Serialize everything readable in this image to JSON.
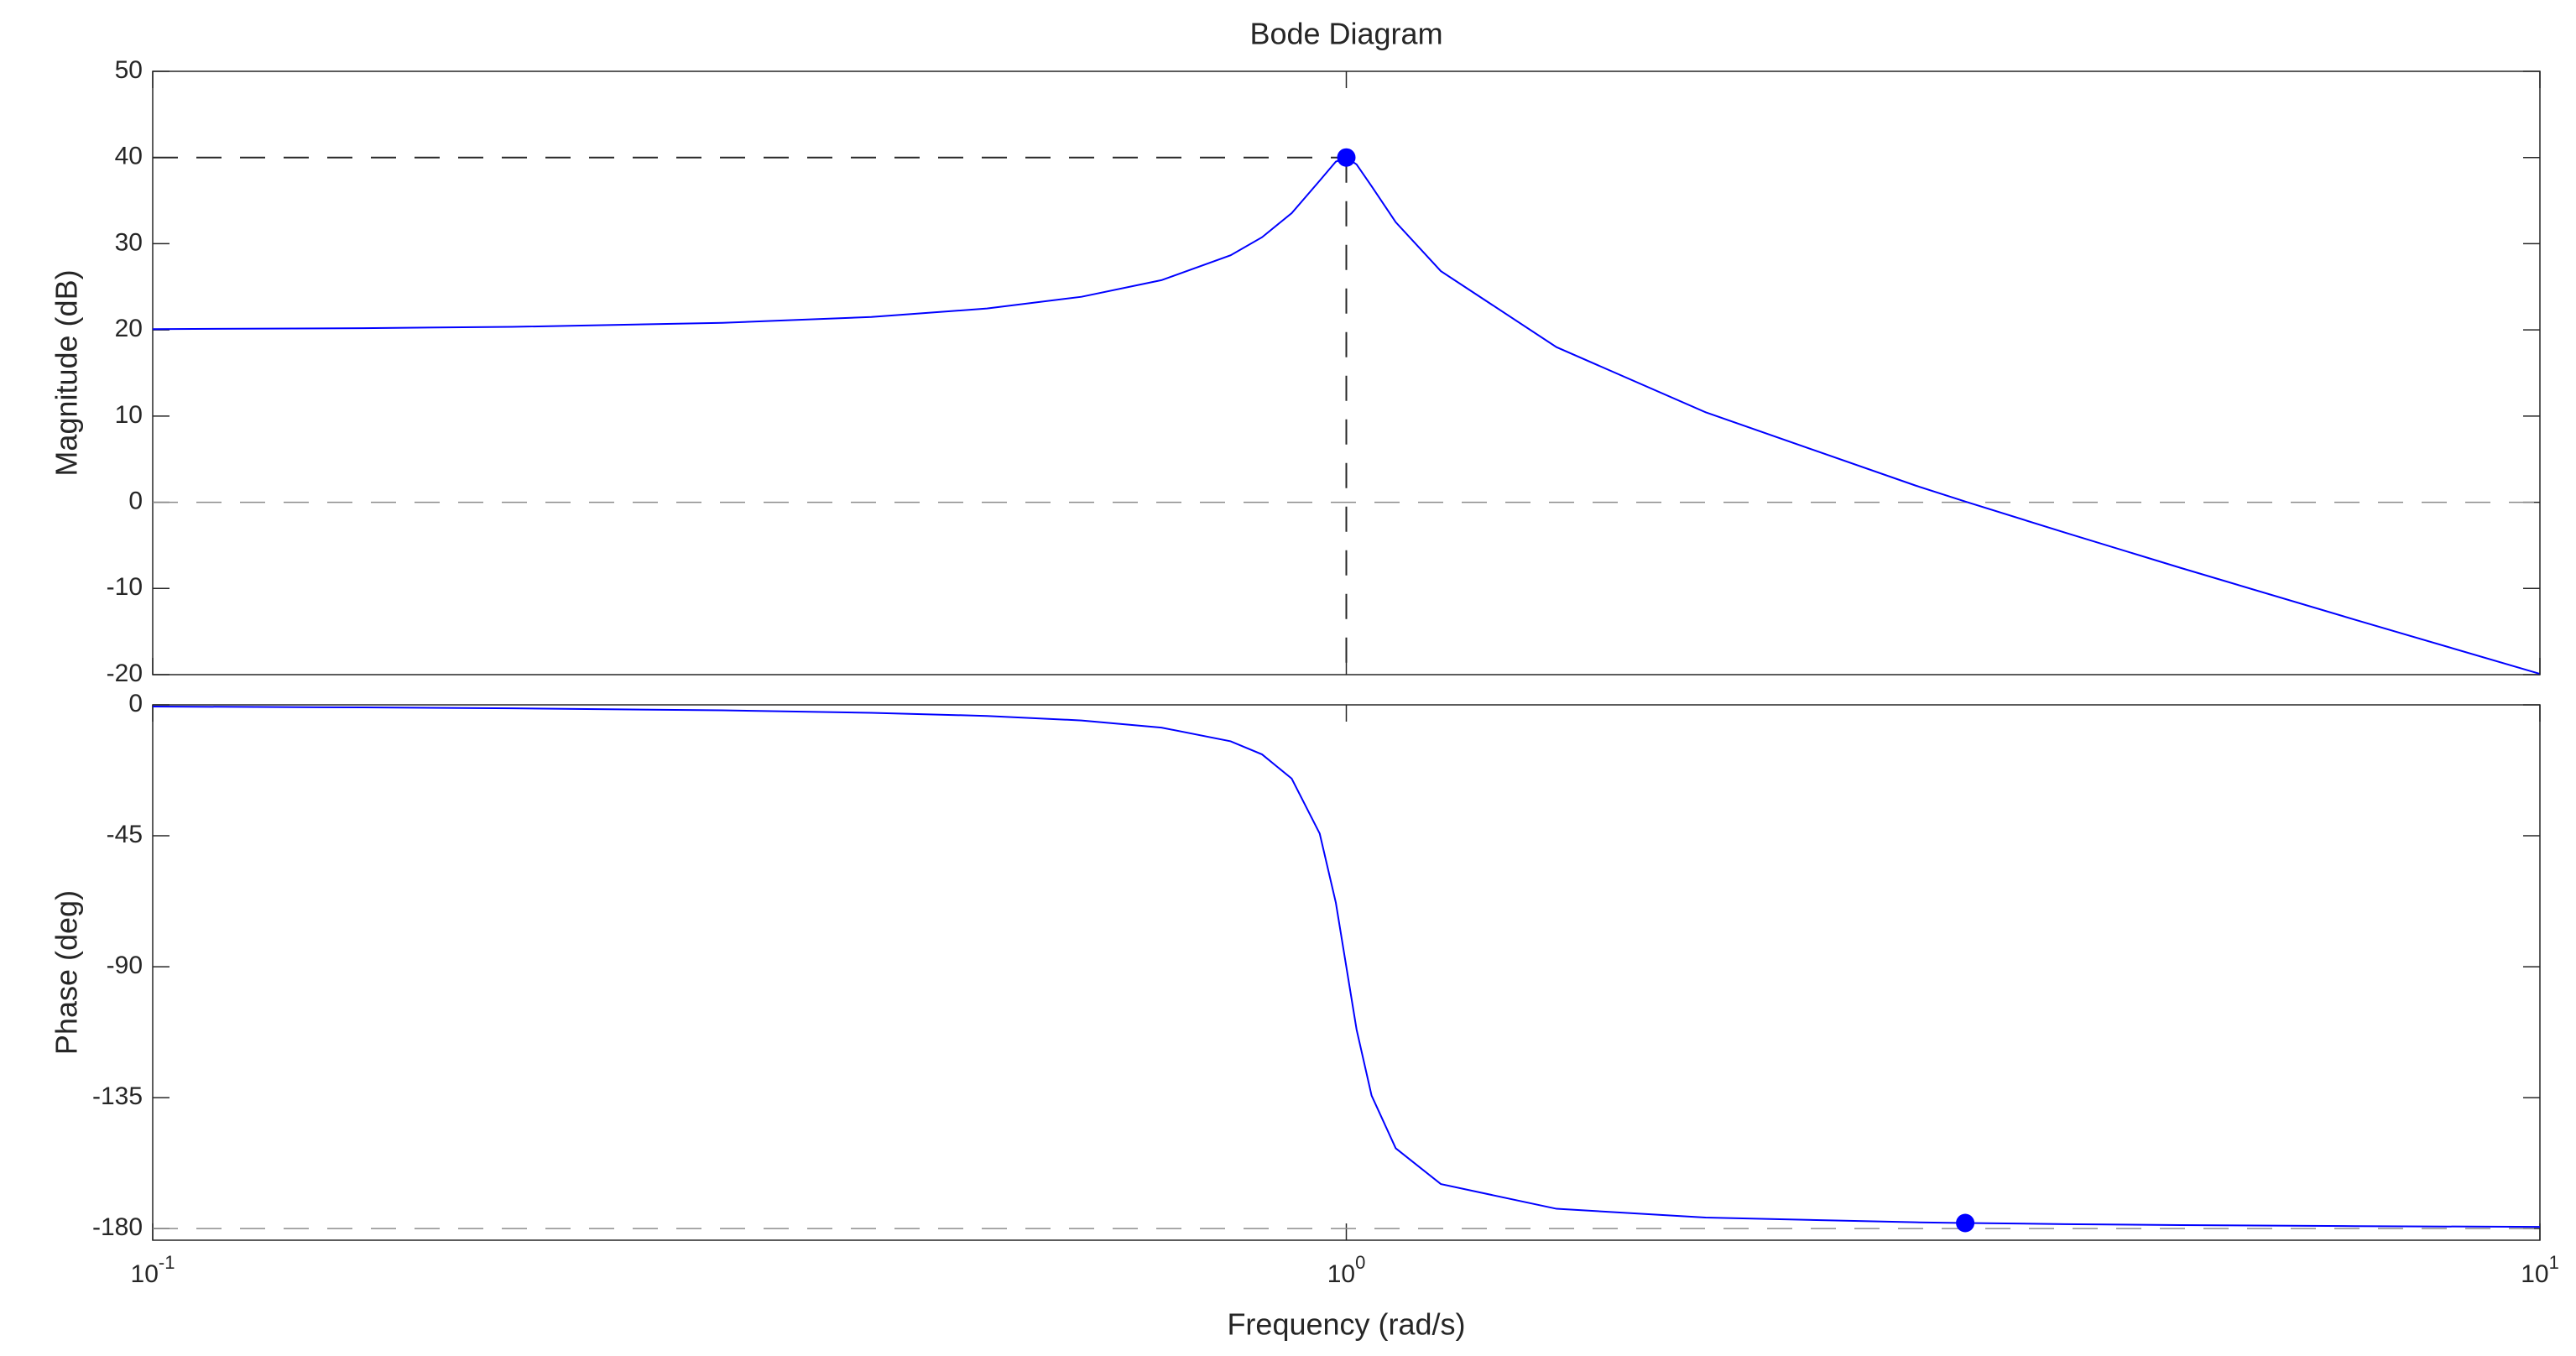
{
  "chart_data": [
    {
      "type": "line",
      "title": "Bode Diagram",
      "ylabel": "Magnitude (dB)",
      "log_x": true,
      "x": [
        0.1,
        0.15,
        0.2,
        0.3,
        0.4,
        0.5,
        0.6,
        0.7,
        0.8,
        0.85,
        0.9,
        0.95,
        0.98,
        1,
        1.02,
        1.05,
        1.1,
        1.2,
        1.5,
        2,
        3,
        3.3,
        4,
        5,
        7,
        10
      ],
      "series": [
        {
          "color": "#0000ff",
          "values": [
            20.09,
            20.2,
            20.35,
            20.82,
            21.5,
            22.48,
            23.84,
            25.77,
            28.66,
            30.75,
            33.55,
            37.32,
            39.52,
            40,
            39.2,
            36.67,
            32.5,
            26.82,
            18.0,
            10.44,
            1.93,
            0.09,
            -3.52,
            -7.61,
            -13.63,
            -19.91
          ]
        }
      ],
      "xlim": [
        0.1,
        10
      ],
      "ylim": [
        -20,
        50
      ],
      "yticks": [
        -20,
        -10,
        0,
        10,
        20,
        30,
        40,
        50
      ],
      "marker": {
        "x": 1,
        "y": 40
      },
      "ref_line": 0
    },
    {
      "type": "line",
      "ylabel": "Phase (deg)",
      "xlabel": "Frequency  (rad/s)",
      "log_x": true,
      "x": [
        0.1,
        0.15,
        0.2,
        0.3,
        0.4,
        0.5,
        0.6,
        0.7,
        0.8,
        0.85,
        0.9,
        0.95,
        0.98,
        1,
        1.02,
        1.05,
        1.1,
        1.2,
        1.5,
        2,
        3,
        3.3,
        4,
        5,
        7,
        10
      ],
      "series": [
        {
          "color": "#0000ff",
          "values": [
            -0.58,
            -0.88,
            -1.19,
            -1.89,
            -2.73,
            -3.81,
            -5.36,
            -7.82,
            -12.53,
            -17.03,
            -25.35,
            -44.26,
            -68.0,
            -90,
            -111.6,
            -134.3,
            -152.4,
            -164.7,
            -173.2,
            -176.2,
            -177.85,
            -178.09,
            -178.47,
            -178.8,
            -179.16,
            -179.42
          ]
        }
      ],
      "xlim": [
        0.1,
        10
      ],
      "ylim": [
        -184,
        0
      ],
      "yticks": [
        -180,
        -135,
        -90,
        -45,
        0
      ],
      "xticks": [
        {
          "value": 0.1,
          "label": "10^-1"
        },
        {
          "value": 1,
          "label": "10^0"
        },
        {
          "value": 10,
          "label": "10^1"
        }
      ],
      "marker": {
        "x": 3.3,
        "y": -178.09
      },
      "ref_line": -180
    }
  ]
}
